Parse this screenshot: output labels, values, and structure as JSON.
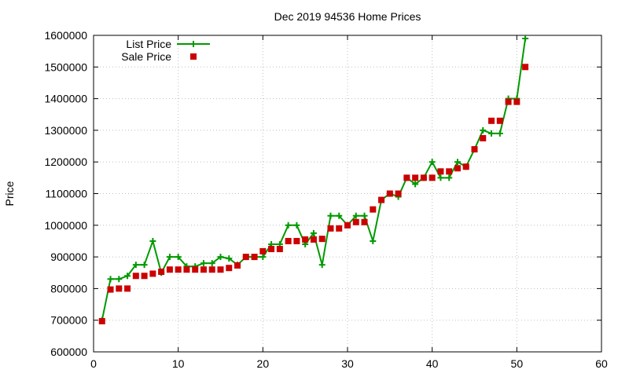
{
  "chart_data": {
    "type": "line",
    "title": "Dec 2019 94536 Home Prices",
    "xlabel": "",
    "ylabel": "Price",
    "xlim": [
      0,
      60
    ],
    "ylim": [
      600000,
      1600000
    ],
    "x_ticks": [
      0,
      10,
      20,
      30,
      40,
      50,
      60
    ],
    "y_ticks": [
      600000,
      700000,
      800000,
      900000,
      1000000,
      1100000,
      1200000,
      1300000,
      1400000,
      1500000,
      1600000
    ],
    "x_tick_labels": [
      "0",
      "10",
      "20",
      "30",
      "40",
      "50",
      "60"
    ],
    "y_tick_labels": [
      "600000",
      "700000",
      "800000",
      "900000",
      "1000000",
      "1100000",
      "1200000",
      "1300000",
      "1400000",
      "1500000",
      "1600000"
    ],
    "grid": true,
    "legend_position": "top-left",
    "series": [
      {
        "name": "List Price",
        "style": "line-with-plus-markers",
        "color": "#009900",
        "x": [
          1,
          2,
          3,
          4,
          5,
          6,
          7,
          8,
          9,
          10,
          11,
          12,
          13,
          14,
          15,
          16,
          17,
          18,
          19,
          20,
          21,
          22,
          23,
          24,
          25,
          26,
          27,
          28,
          29,
          30,
          31,
          32,
          33,
          34,
          35,
          36,
          37,
          38,
          39,
          40,
          41,
          42,
          43,
          44,
          45,
          46,
          47,
          48,
          49,
          50,
          51
        ],
        "values": [
          700000,
          830000,
          830000,
          840000,
          875000,
          875000,
          950000,
          850000,
          900000,
          900000,
          870000,
          870000,
          880000,
          880000,
          900000,
          895000,
          875000,
          900000,
          900000,
          900000,
          940000,
          940000,
          1000000,
          1000000,
          940000,
          975000,
          875000,
          1030000,
          1030000,
          1000000,
          1030000,
          1030000,
          950000,
          1080000,
          1100000,
          1090000,
          1150000,
          1130000,
          1150000,
          1200000,
          1150000,
          1150000,
          1200000,
          1185000,
          1240000,
          1300000,
          1290000,
          1290000,
          1400000,
          1400000,
          1590000
        ]
      },
      {
        "name": "Sale Price",
        "style": "square-markers",
        "color": "#cc0000",
        "x": [
          1,
          2,
          3,
          4,
          5,
          6,
          7,
          8,
          9,
          10,
          11,
          12,
          13,
          14,
          15,
          16,
          17,
          18,
          19,
          20,
          21,
          22,
          23,
          24,
          25,
          26,
          27,
          28,
          29,
          30,
          31,
          32,
          33,
          34,
          35,
          36,
          37,
          38,
          39,
          40,
          41,
          42,
          43,
          44,
          45,
          46,
          47,
          48,
          49,
          50,
          51
        ],
        "values": [
          697000,
          797000,
          800000,
          800000,
          840000,
          840000,
          847000,
          853000,
          860000,
          860000,
          860000,
          860000,
          860000,
          860000,
          860000,
          865000,
          873000,
          900000,
          900000,
          918000,
          925000,
          925000,
          950000,
          950000,
          955000,
          955000,
          957000,
          990000,
          990000,
          1000000,
          1010000,
          1010000,
          1050000,
          1080000,
          1100000,
          1100000,
          1150000,
          1150000,
          1150000,
          1150000,
          1170000,
          1170000,
          1180000,
          1185000,
          1240000,
          1275000,
          1330000,
          1330000,
          1390000,
          1390000,
          1500000
        ]
      }
    ]
  }
}
